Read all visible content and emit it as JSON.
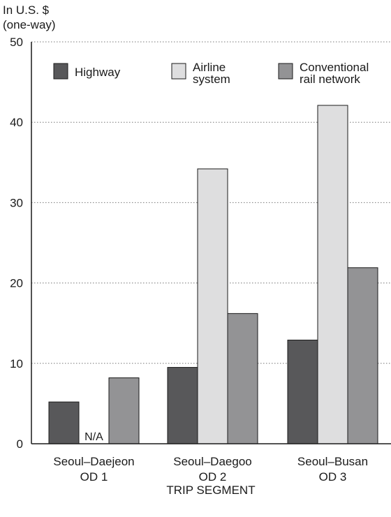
{
  "chart_data": {
    "type": "bar",
    "title": "",
    "ylabel": "In U.S. $\n(one-way)",
    "xlabel": "TRIP SEGMENT",
    "ylim": [
      0,
      50
    ],
    "yticks": [
      0,
      10,
      20,
      30,
      40,
      50
    ],
    "grid": true,
    "legend_position": "top",
    "categories": [
      "Seoul–Daejeon\nOD 1",
      "Seoul–Daegoo\nOD 2",
      "Seoul–Busan\nOD 3"
    ],
    "series": [
      {
        "name": "Highway",
        "color": "#58585a",
        "values": [
          5.2,
          9.5,
          12.9
        ]
      },
      {
        "name": "Airline\nsystem",
        "color": "#dededf",
        "values": [
          null,
          34.2,
          42.1
        ]
      },
      {
        "name": "Conventional\nrail network",
        "color": "#939395",
        "values": [
          8.2,
          16.2,
          21.9
        ]
      }
    ],
    "annotations": [
      {
        "text": "N/A",
        "category": 0,
        "series": 1
      }
    ]
  }
}
